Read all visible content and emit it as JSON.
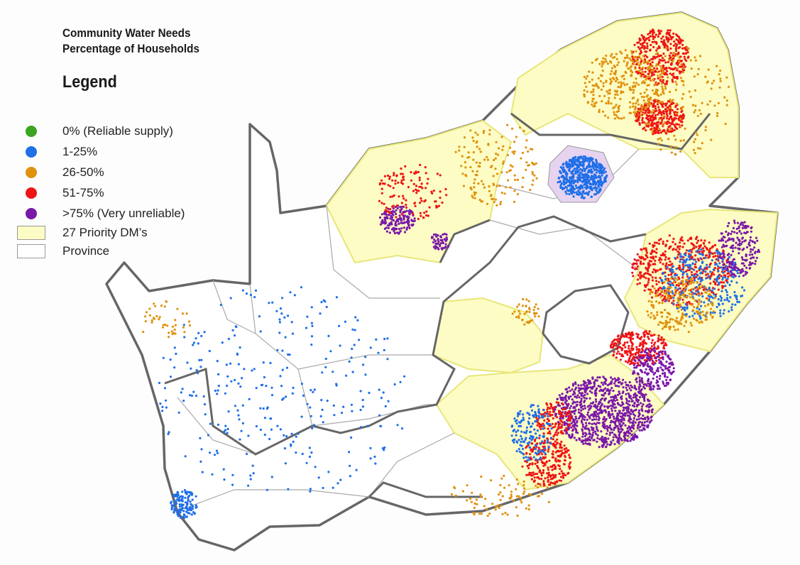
{
  "title_line1": "Community Water Needs",
  "title_line2": "Percentage of Households",
  "legend_heading": "Legend",
  "legend": [
    {
      "label": "0% (Reliable supply)",
      "color": "#3aa520",
      "kind": "dot"
    },
    {
      "label": "1-25%",
      "color": "#1f6fe8",
      "kind": "dot"
    },
    {
      "label": "26-50%",
      "color": "#e0920e",
      "kind": "dot"
    },
    {
      "label": "51-75%",
      "color": "#ee1515",
      "kind": "dot"
    },
    {
      "label": ">75% (Very unreliable)",
      "color": "#7a18a8",
      "kind": "dot"
    },
    {
      "label": "27 Priority DM’s",
      "color": "#fdfcc4",
      "kind": "box"
    },
    {
      "label": "Province",
      "color": "#ffffff",
      "kind": "box"
    }
  ]
}
